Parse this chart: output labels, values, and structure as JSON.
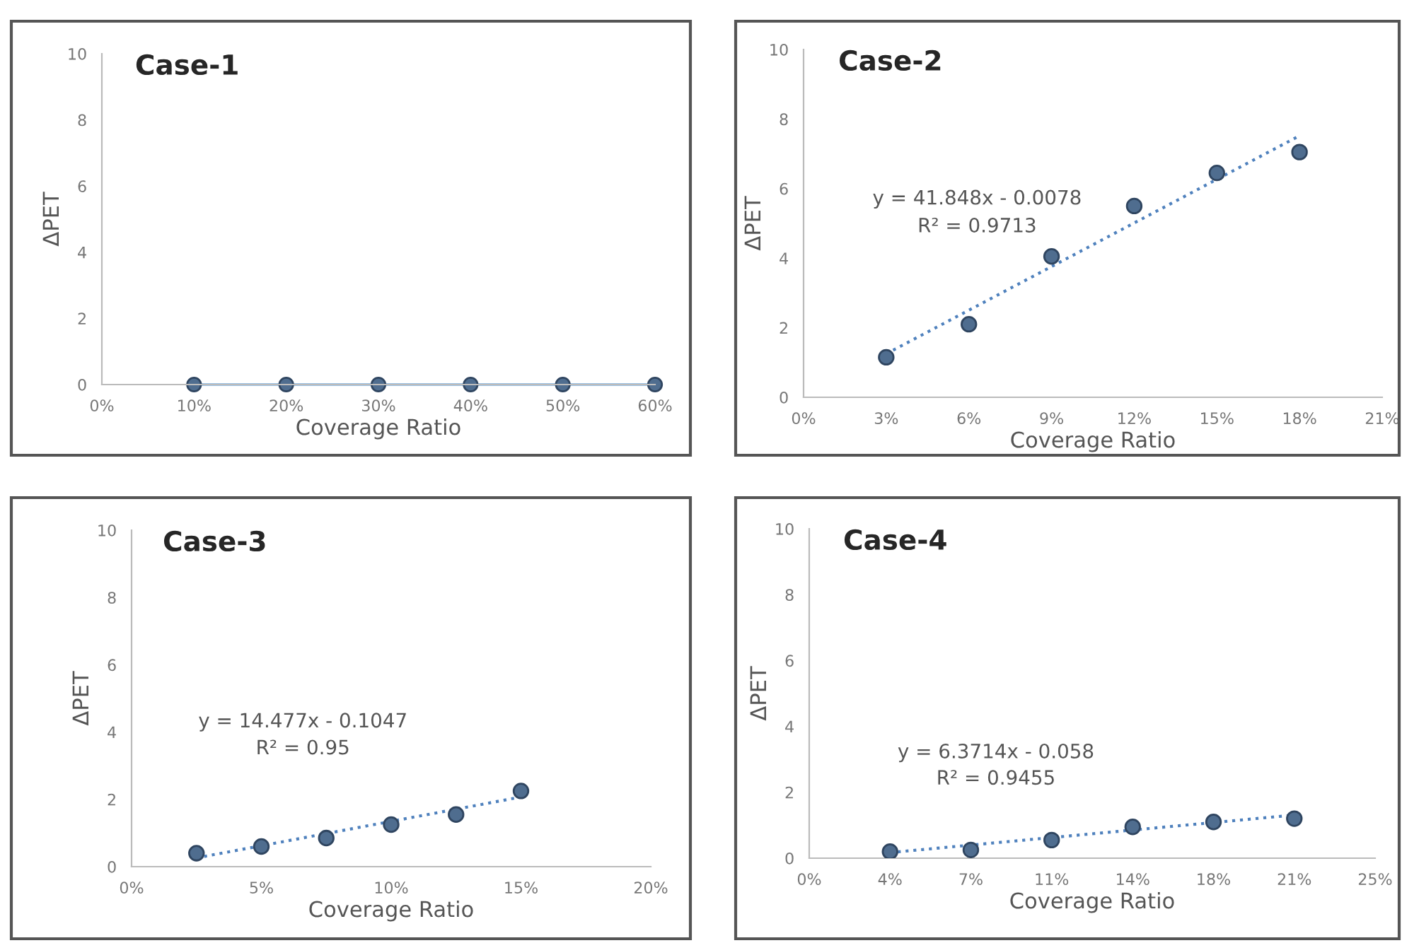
{
  "chart_data": [
    {
      "type": "line",
      "title": "Case-1",
      "xlabel": "Coverage Ratio",
      "ylabel": "ΔPET",
      "xlim": [
        0,
        60
      ],
      "xticks": [
        {
          "value": 0,
          "label": "0%"
        },
        {
          "value": 10,
          "label": "10%"
        },
        {
          "value": 20,
          "label": "20%"
        },
        {
          "value": 30,
          "label": "30%"
        },
        {
          "value": 40,
          "label": "40%"
        },
        {
          "value": 50,
          "label": "50%"
        },
        {
          "value": 60,
          "label": "60%"
        }
      ],
      "ylim": [
        0,
        10
      ],
      "yticks": [
        0,
        2,
        4,
        6,
        8,
        10
      ],
      "marker": "circle",
      "line_style": "solid",
      "series": [
        {
          "color": "#9dc3e6",
          "x": [
            10,
            20,
            30,
            40,
            50,
            60
          ],
          "values": [
            0,
            0,
            0,
            0,
            0,
            0
          ]
        }
      ]
    },
    {
      "type": "scatter",
      "title": "Case-2",
      "xlabel": "Coverage Ratio",
      "ylabel": "ΔPET",
      "xlim": [
        0,
        21
      ],
      "xticks": [
        {
          "value": 0,
          "label": "0%"
        },
        {
          "value": 3,
          "label": "3%"
        },
        {
          "value": 6,
          "label": "6%"
        },
        {
          "value": 9,
          "label": "9%"
        },
        {
          "value": 12,
          "label": "12%"
        },
        {
          "value": 15,
          "label": "15%"
        },
        {
          "value": 18,
          "label": "18%"
        },
        {
          "value": 21,
          "label": "21%"
        }
      ],
      "ylim": [
        0,
        10
      ],
      "yticks": [
        0,
        2,
        4,
        6,
        8,
        10
      ],
      "marker": "circle",
      "annotations": [
        "y = 41.848x - 0.0078",
        "R² = 0.9713"
      ],
      "series": [
        {
          "color": "#4f6d8f",
          "x": [
            3,
            6,
            9,
            12,
            15,
            18
          ],
          "values": [
            1.15,
            2.1,
            4.05,
            5.5,
            6.45,
            7.05
          ]
        },
        {
          "type": "line",
          "line_style": "dotted",
          "marker": "none",
          "color": "#4f81bd",
          "x": [
            3,
            18
          ],
          "values": [
            1.25,
            7.52
          ]
        }
      ]
    },
    {
      "type": "scatter",
      "title": "Case-3",
      "xlabel": "Coverage Ratio",
      "ylabel": "ΔPET",
      "xlim": [
        0,
        20
      ],
      "xticks": [
        {
          "value": 0,
          "label": "0%"
        },
        {
          "value": 5,
          "label": "5%"
        },
        {
          "value": 10,
          "label": "10%"
        },
        {
          "value": 15,
          "label": "15%"
        },
        {
          "value": 20,
          "label": "20%"
        }
      ],
      "ylim": [
        0,
        10
      ],
      "yticks": [
        0,
        2,
        4,
        6,
        8,
        10
      ],
      "marker": "circle",
      "annotations": [
        "y = 14.477x - 0.1047",
        "R² = 0.95"
      ],
      "series": [
        {
          "color": "#4f6d8f",
          "x": [
            2.5,
            5,
            7.5,
            10,
            12.5,
            15
          ],
          "values": [
            0.4,
            0.6,
            0.85,
            1.25,
            1.55,
            2.25
          ]
        },
        {
          "type": "line",
          "line_style": "dotted",
          "marker": "none",
          "color": "#4f81bd",
          "x": [
            2.5,
            15
          ],
          "values": [
            0.26,
            2.07
          ]
        }
      ]
    },
    {
      "type": "scatter",
      "title": "Case-4",
      "xlabel": "Coverage Ratio",
      "ylabel": "ΔPET",
      "xlim": [
        0,
        25
      ],
      "xticks": [
        {
          "value": 0,
          "label": "0%"
        },
        {
          "value": 3.57,
          "label": "4%"
        },
        {
          "value": 7.14,
          "label": "7%"
        },
        {
          "value": 10.71,
          "label": "11%"
        },
        {
          "value": 14.29,
          "label": "14%"
        },
        {
          "value": 17.86,
          "label": "18%"
        },
        {
          "value": 21.43,
          "label": "21%"
        },
        {
          "value": 25,
          "label": "25%"
        }
      ],
      "ylim": [
        0,
        10
      ],
      "yticks": [
        0,
        2,
        4,
        6,
        8,
        10
      ],
      "marker": "circle",
      "annotations": [
        "y = 6.3714x - 0.058",
        "R² = 0.9455"
      ],
      "series": [
        {
          "color": "#4f6d8f",
          "x": [
            3.57,
            7.14,
            10.71,
            14.29,
            17.86,
            21.43
          ],
          "values": [
            0.2,
            0.25,
            0.55,
            0.95,
            1.1,
            1.2
          ]
        },
        {
          "type": "line",
          "line_style": "dotted",
          "marker": "none",
          "color": "#4f81bd",
          "x": [
            3.57,
            21.43
          ],
          "values": [
            0.17,
            1.31
          ]
        }
      ]
    }
  ]
}
